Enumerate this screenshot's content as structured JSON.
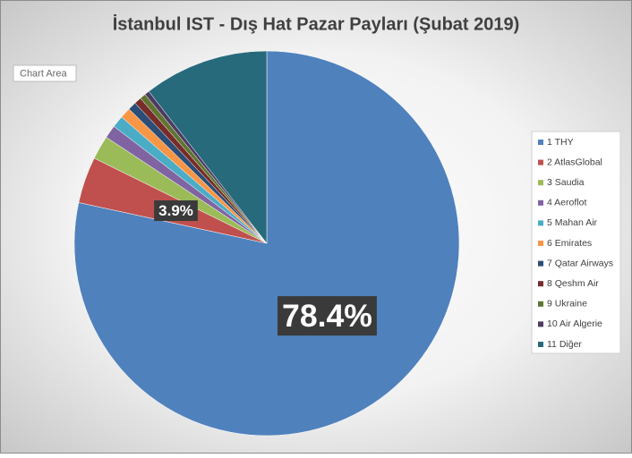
{
  "chart_data": {
    "type": "pie",
    "title": "İstanbul IST - Dış Hat Pazar Payları (Şubat 2019)",
    "tooltip": "Chart Area",
    "categories": [
      "1 THY",
      "2 AtlasGlobal",
      "3 Saudia",
      "4 Aeroflot",
      "5 Mahan Air",
      "6 Emirates",
      "7 Qatar Airways",
      "8 Qeshm Air",
      "9 Ukraine",
      "10 Air Algerie",
      "11 Diğer"
    ],
    "values": [
      78.4,
      3.9,
      2.0,
      1.1,
      1.0,
      0.9,
      0.7,
      0.6,
      0.5,
      0.4,
      10.5
    ],
    "value_labels": [
      "78.4%",
      "3.9%",
      null,
      null,
      null,
      null,
      null,
      null,
      null,
      null,
      null
    ],
    "colors": [
      "#4f81bd",
      "#c0504d",
      "#9bbb59",
      "#8064a2",
      "#4bacc6",
      "#f79646",
      "#2c4d75",
      "#772c2a",
      "#5f7530",
      "#4d3b62",
      "#276a7c"
    ],
    "legend": "right"
  }
}
